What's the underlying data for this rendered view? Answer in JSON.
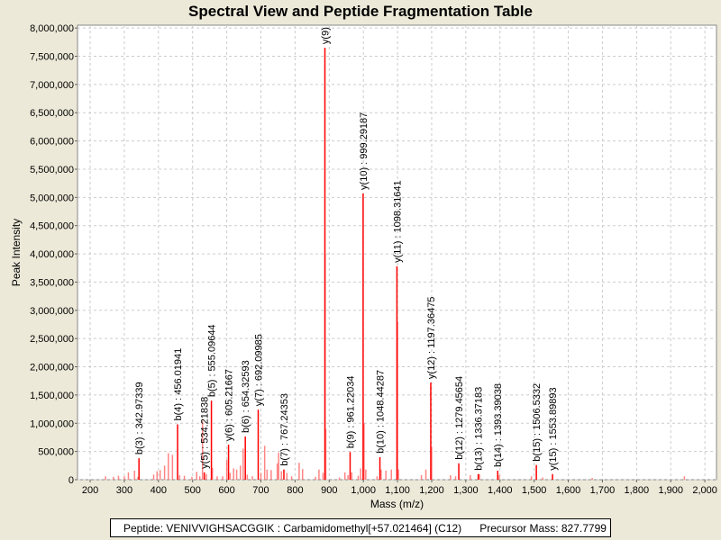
{
  "chart_data": {
    "type": "bar",
    "title": "Spectral View and Peptide Fragmentation Table",
    "xlabel": "Mass (m/z)",
    "ylabel": "Peak Intensity",
    "xlim": [
      163,
      2034
    ],
    "ylim": [
      0,
      8050000
    ],
    "xticks": [
      200,
      300,
      400,
      500,
      600,
      700,
      800,
      900,
      1000,
      1100,
      1200,
      1300,
      1400,
      1500,
      1600,
      1700,
      1800,
      1900,
      2000
    ],
    "yticks": [
      0,
      500000,
      1000000,
      1500000,
      2000000,
      2500000,
      3000000,
      3500000,
      4000000,
      4500000,
      5000000,
      5500000,
      6000000,
      6500000,
      7000000,
      7500000,
      8000000
    ],
    "grid": true,
    "series_color": "#FF0000",
    "labeled_peaks": [
      {
        "label": "b(3) : 342.97339",
        "mz": 342.97,
        "intensity": 380000
      },
      {
        "label": "b(4) : 456.01941",
        "mz": 456.02,
        "intensity": 980000
      },
      {
        "label": "y(5) : 534.21838",
        "mz": 534.22,
        "intensity": 130000
      },
      {
        "label": "b(5) : 555.09644",
        "mz": 555.1,
        "intensity": 1400000
      },
      {
        "label": "y(6) : 605.21667",
        "mz": 605.22,
        "intensity": 620000
      },
      {
        "label": "b(6) : 654.32593",
        "mz": 654.33,
        "intensity": 765000
      },
      {
        "label": "y(7) : 692.09985",
        "mz": 692.1,
        "intensity": 1240000
      },
      {
        "label": "b(7) : 767.24353",
        "mz": 767.24,
        "intensity": 180000
      },
      {
        "label": "y(9)",
        "mz": 887.4,
        "intensity": 7650000
      },
      {
        "label": "b(9) : 961.22034",
        "mz": 961.22,
        "intensity": 490000
      },
      {
        "label": "y(10) : 999.29187",
        "mz": 999.29,
        "intensity": 5070000
      },
      {
        "label": "b(10) : 1048.44287",
        "mz": 1048.44,
        "intensity": 400000
      },
      {
        "label": "y(11) : 1098.31641",
        "mz": 1098.32,
        "intensity": 3780000
      },
      {
        "label": "y(12) : 1197.36475",
        "mz": 1197.36,
        "intensity": 1720000
      },
      {
        "label": "b(12) : 1279.45654",
        "mz": 1279.46,
        "intensity": 290000
      },
      {
        "label": "b(13) : 1336.37183",
        "mz": 1336.37,
        "intensity": 100000
      },
      {
        "label": "b(14) : 1393.39038",
        "mz": 1393.39,
        "intensity": 160000
      },
      {
        "label": "b(15) : 1506.5332",
        "mz": 1506.53,
        "intensity": 260000
      },
      {
        "label": "y(15) : 1553.89893",
        "mz": 1553.9,
        "intensity": 100000
      }
    ],
    "other_peaks": [
      [
        245,
        60000
      ],
      [
        268,
        50000
      ],
      [
        283,
        70000
      ],
      [
        300,
        60000
      ],
      [
        312,
        130000
      ],
      [
        330,
        160000
      ],
      [
        340,
        50000
      ],
      [
        386,
        90000
      ],
      [
        396,
        150000
      ],
      [
        405,
        170000
      ],
      [
        418,
        250000
      ],
      [
        429,
        470000
      ],
      [
        441,
        440000
      ],
      [
        462,
        80000
      ],
      [
        476,
        70000
      ],
      [
        498,
        50000
      ],
      [
        512,
        140000
      ],
      [
        521,
        60000
      ],
      [
        529,
        1040000
      ],
      [
        540,
        100000
      ],
      [
        558,
        210000
      ],
      [
        572,
        60000
      ],
      [
        588,
        60000
      ],
      [
        600,
        350000
      ],
      [
        610,
        120000
      ],
      [
        620,
        200000
      ],
      [
        629,
        180000
      ],
      [
        640,
        250000
      ],
      [
        648,
        550000
      ],
      [
        660,
        90000
      ],
      [
        675,
        60000
      ],
      [
        700,
        120000
      ],
      [
        711,
        600000
      ],
      [
        718,
        180000
      ],
      [
        730,
        170000
      ],
      [
        748,
        290000
      ],
      [
        752,
        480000
      ],
      [
        760,
        150000
      ],
      [
        776,
        120000
      ],
      [
        790,
        60000
      ],
      [
        812,
        300000
      ],
      [
        822,
        190000
      ],
      [
        860,
        50000
      ],
      [
        870,
        180000
      ],
      [
        882,
        120000
      ],
      [
        888,
        4000000
      ],
      [
        890,
        900000
      ],
      [
        930,
        40000
      ],
      [
        946,
        130000
      ],
      [
        955,
        80000
      ],
      [
        966,
        130000
      ],
      [
        985,
        70000
      ],
      [
        992,
        200000
      ],
      [
        1002,
        1000000
      ],
      [
        1007,
        180000
      ],
      [
        1040,
        60000
      ],
      [
        1052,
        180000
      ],
      [
        1066,
        160000
      ],
      [
        1082,
        180000
      ],
      [
        1100,
        2800000
      ],
      [
        1103,
        180000
      ],
      [
        1170,
        80000
      ],
      [
        1183,
        180000
      ],
      [
        1200,
        580000
      ],
      [
        1255,
        80000
      ],
      [
        1270,
        60000
      ],
      [
        1313,
        80000
      ],
      [
        1340,
        100000
      ],
      [
        1398,
        80000
      ],
      [
        1492,
        60000
      ],
      [
        1525,
        40000
      ],
      [
        1670,
        30000
      ],
      [
        1940,
        60000
      ]
    ]
  },
  "footer": {
    "peptide": "Peptide: VENIVVIGHSACGGIK : Carbamidomethyl[+57.021464] (C12)",
    "precursor": "Precursor Mass: 827.7799"
  }
}
